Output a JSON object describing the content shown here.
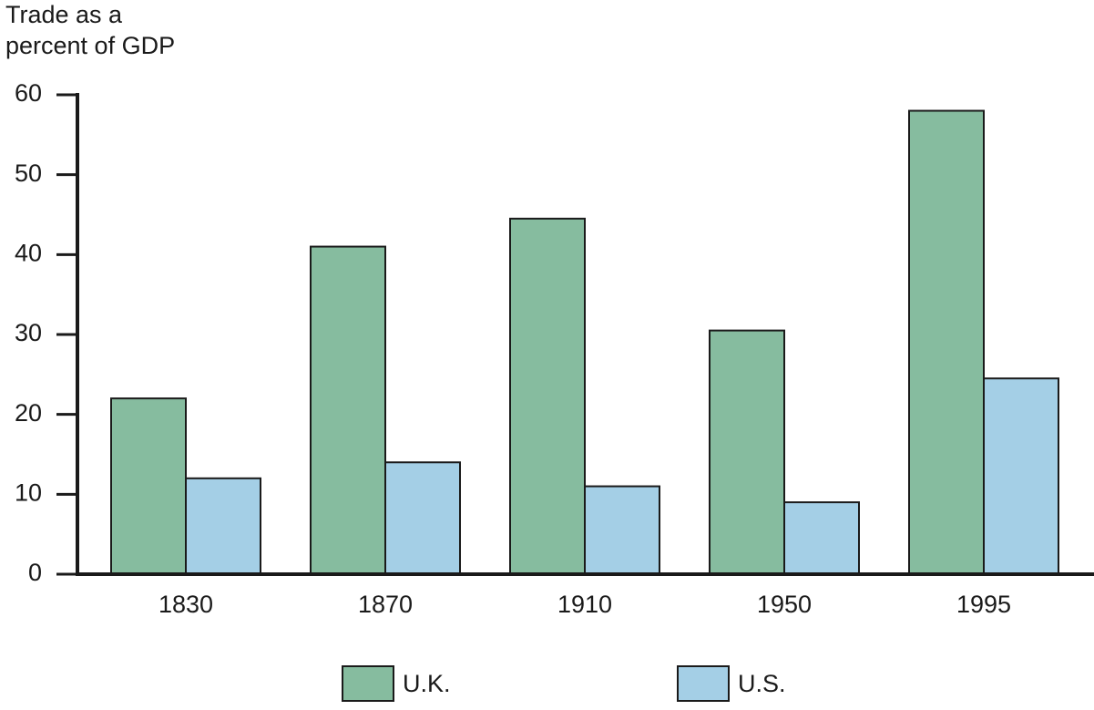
{
  "chart_data": {
    "type": "bar",
    "ylabel": [
      "Trade as a",
      "percent of GDP"
    ],
    "categories": [
      "1830",
      "1870",
      "1910",
      "1950",
      "1995"
    ],
    "series": [
      {
        "name": "U.K.",
        "color": "#86bc9f",
        "values": [
          22,
          41,
          44.5,
          30.5,
          58
        ]
      },
      {
        "name": "U.S.",
        "color": "#a4cfe6",
        "values": [
          12,
          14,
          11,
          9,
          24.5
        ]
      }
    ],
    "ylim": [
      0,
      60
    ],
    "yticks": [
      0,
      10,
      20,
      30,
      40,
      50,
      60
    ],
    "legend": "bottom"
  }
}
